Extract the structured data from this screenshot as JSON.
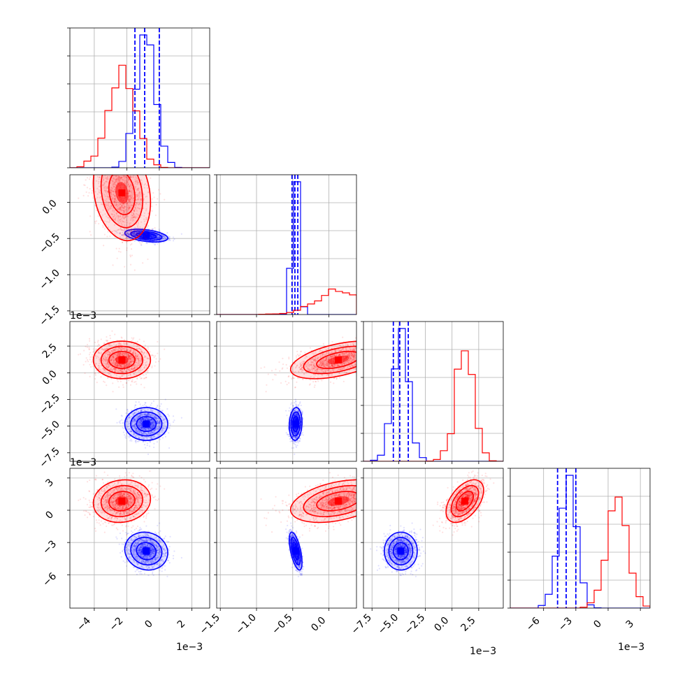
{
  "chart_data": {
    "type": "corner",
    "colors": {
      "blue": "#0000ff",
      "red": "#ff0000",
      "grid": "#b0b0b0"
    },
    "grid": true,
    "series": [
      {
        "color": "blue",
        "mean": [
          -0.0008,
          -0.00046,
          -0.0048,
          -0.0038
        ],
        "std": [
          0.0006,
          4e-05,
          0.0007,
          0.0008
        ],
        "corr": [
          [
            1,
            -0.4,
            0.0,
            -0.1
          ],
          [
            -0.4,
            1,
            0.1,
            -0.6
          ],
          [
            0.0,
            0.1,
            1,
            0.0
          ],
          [
            -0.1,
            -0.6,
            0.0,
            1
          ]
        ],
        "quantile_lines": [
          [
            -0.0015,
            -0.0009,
            0.0
          ],
          [
            -0.00051,
            -0.00047,
            -0.00043
          ],
          [
            -0.0055,
            -0.0049,
            -0.0041
          ],
          [
            -0.0047,
            -0.0039,
            -0.003
          ]
        ]
      },
      {
        "color": "red",
        "mean": [
          -0.0023,
          0.00013,
          0.0012,
          0.00085
        ],
        "std": [
          0.0008,
          0.0003,
          0.0008,
          0.0009
        ],
        "corr": [
          [
            1,
            -0.2,
            0.0,
            0.1
          ],
          [
            -0.2,
            1,
            0.5,
            0.4
          ],
          [
            0.0,
            0.5,
            1,
            0.5
          ],
          [
            0.1,
            0.4,
            0.5,
            1
          ]
        ]
      }
    ],
    "axes": [
      {
        "range": [
          -0.0055,
          0.0031
        ],
        "ticks": [
          -0.004,
          -0.002,
          0.0,
          0.002
        ],
        "tick_labels": [
          "−4",
          "−2",
          "0",
          "2"
        ]
      },
      {
        "range": [
          -0.00155,
          0.00038
        ],
        "ticks": [
          -0.0015,
          -0.001,
          -0.0005,
          0.0
        ],
        "tick_labels": [
          "−1.5",
          "−1.0",
          "−0.5",
          "0.0"
        ]
      },
      {
        "range": [
          -0.0083,
          0.0048
        ],
        "ticks": [
          -0.0075,
          -0.005,
          -0.0025,
          0.0,
          0.0025
        ],
        "tick_labels": [
          "−7.5",
          "−5.0",
          "−2.5",
          "0.0",
          "2.5"
        ]
      },
      {
        "range": [
          -0.0091,
          0.0039
        ],
        "ticks": [
          -0.006,
          -0.003,
          0.0,
          0.003
        ],
        "tick_labels": [
          "−6",
          "−3",
          "0",
          "3"
        ]
      }
    ],
    "offset_label": "1e−3"
  }
}
